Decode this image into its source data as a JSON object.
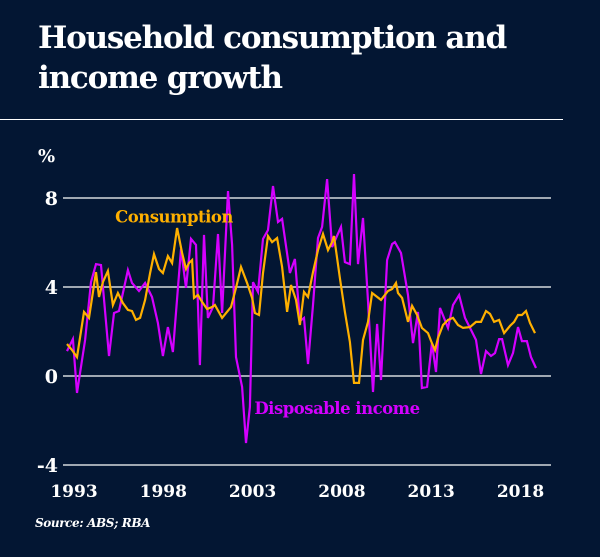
{
  "title": "Household consumption and income growth",
  "source": "Source: ABS; RBA",
  "colors": {
    "background": "#031633",
    "consumption": "#ffb000",
    "income": "#d400ff",
    "grid": "#ffffff",
    "text": "#ffffff"
  },
  "chart_data": {
    "type": "line",
    "title": "Household consumption and income growth",
    "xlabel": "",
    "ylabel": "%",
    "ylim": [
      -4,
      8
    ],
    "xlim": [
      1992.5,
      2019.4
    ],
    "yticks": [
      8,
      4,
      0,
      -4
    ],
    "ytick_labels": [
      "8",
      "4",
      "0",
      "-4"
    ],
    "xticks": [
      1993,
      1998,
      2003,
      2008,
      2013,
      2018
    ],
    "xtick_labels": [
      "1993",
      "1998",
      "2003",
      "2008",
      "2013",
      "2018"
    ],
    "grid": "horizontal",
    "legend": "inline labels",
    "series": [
      {
        "name": "Consumption",
        "label_anchor": [
          1995.3,
          6.9
        ],
        "x": [
          1992.61,
          1992.89,
          1993.17,
          1993.56,
          1993.84,
          1994.23,
          1994.4,
          1994.62,
          1994.9,
          1995.18,
          1995.46,
          1995.74,
          1996.02,
          1996.25,
          1996.47,
          1996.7,
          1996.98,
          1997.26,
          1997.48,
          1997.76,
          1997.98,
          1998.26,
          1998.49,
          1998.77,
          1999.05,
          1999.27,
          1999.44,
          1999.61,
          1999.72,
          1999.94,
          2000.17,
          2000.45,
          2000.73,
          2000.89,
          2001.29,
          2001.79,
          2002.07,
          2002.35,
          2002.69,
          2002.97,
          2003.13,
          2003.36,
          2003.58,
          2003.86,
          2004.09,
          2004.37,
          2004.65,
          2004.93,
          2005.15,
          2005.43,
          2005.65,
          2005.88,
          2006.1,
          2006.38,
          2006.66,
          2006.94,
          2007.22,
          2007.45,
          2007.56,
          2007.89,
          2008.17,
          2008.45,
          2008.68,
          2008.96,
          2009.18,
          2009.46,
          2009.69,
          2010.19,
          2010.58,
          2010.81,
          2011.03,
          2011.14,
          2011.37,
          2011.7,
          2011.93,
          2012.21,
          2012.48,
          2012.82,
          2013.04,
          2013.21,
          2013.38,
          2013.66,
          2013.94,
          2014.22,
          2014.5,
          2014.78,
          2015.17,
          2015.51,
          2015.79,
          2016.07,
          2016.29,
          2016.52,
          2016.8,
          2017.08,
          2017.41,
          2017.64,
          2017.86,
          2018.08,
          2018.31,
          2018.53,
          2018.81
        ],
        "values": [
          1.44,
          1.17,
          0.85,
          2.88,
          2.61,
          4.67,
          3.55,
          4.22,
          4.72,
          3.19,
          3.73,
          3.28,
          2.97,
          2.92,
          2.52,
          2.61,
          3.42,
          4.63,
          5.48,
          4.81,
          4.63,
          5.39,
          5.08,
          6.65,
          5.53,
          4.81,
          5.08,
          5.21,
          3.51,
          3.64,
          3.33,
          3.01,
          3.1,
          3.19,
          2.61,
          3.1,
          3.96,
          4.9,
          4.18,
          3.51,
          2.83,
          2.74,
          4.63,
          6.29,
          6.02,
          6.2,
          4.9,
          2.88,
          4.09,
          3.42,
          2.29,
          3.78,
          3.55,
          4.67,
          5.66,
          6.38,
          5.66,
          6.02,
          6.29,
          4.4,
          2.88,
          1.53,
          -0.31,
          -0.31,
          1.62,
          2.43,
          3.73,
          3.42,
          3.82,
          3.91,
          4.18,
          3.73,
          3.51,
          2.43,
          3.15,
          2.74,
          2.16,
          1.93,
          1.48,
          1.17,
          1.71,
          2.29,
          2.52,
          2.61,
          2.29,
          2.16,
          2.2,
          2.43,
          2.43,
          2.92,
          2.79,
          2.43,
          2.52,
          1.93,
          2.25,
          2.43,
          2.74,
          2.74,
          2.92,
          2.38,
          1.93
        ]
      },
      {
        "name": "Disposable income",
        "label_anchor": [
          2003.1,
          -1.7
        ],
        "x": [
          1992.61,
          1992.94,
          1993.17,
          1993.62,
          1993.95,
          1994.23,
          1994.51,
          1994.96,
          1995.24,
          1995.52,
          1996.02,
          1996.25,
          1996.64,
          1996.98,
          1997.37,
          1997.7,
          1997.98,
          1998.26,
          1998.54,
          1998.99,
          1999.27,
          1999.55,
          1999.83,
          2000.05,
          2000.28,
          2000.5,
          2000.78,
          2001.06,
          2001.29,
          2001.62,
          2001.85,
          2002.07,
          2002.41,
          2002.63,
          2002.85,
          2003.02,
          2003.3,
          2003.58,
          2003.86,
          2004.14,
          2004.42,
          2004.65,
          2005.09,
          2005.37,
          2005.65,
          2005.88,
          2006.1,
          2006.38,
          2006.66,
          2006.89,
          2007.17,
          2007.45,
          2007.95,
          2008.17,
          2008.45,
          2008.68,
          2008.9,
          2009.18,
          2009.46,
          2009.74,
          2009.97,
          2010.19,
          2010.53,
          2010.81,
          2010.97,
          2011.31,
          2011.7,
          2011.98,
          2012.26,
          2012.48,
          2012.77,
          2013.04,
          2013.27,
          2013.49,
          2013.94,
          2014.22,
          2014.56,
          2014.89,
          2015.23,
          2015.51,
          2015.79,
          2016.07,
          2016.35,
          2016.57,
          2016.8,
          2016.97,
          2017.3,
          2017.58,
          2017.86,
          2018.08,
          2018.36,
          2018.59,
          2018.87
        ],
        "values": [
          1.12,
          1.66,
          -0.76,
          1.62,
          4.22,
          5.03,
          4.99,
          0.9,
          2.83,
          2.92,
          4.76,
          4.18,
          3.82,
          4.18,
          3.55,
          2.38,
          0.9,
          2.2,
          1.08,
          5.71,
          3.96,
          6.16,
          5.89,
          0.49,
          6.34,
          2.61,
          3.1,
          6.38,
          2.83,
          8.31,
          5.89,
          0.85,
          -0.49,
          -3.01,
          -1.39,
          4.22,
          3.78,
          6.16,
          6.56,
          8.54,
          6.92,
          7.06,
          4.63,
          5.26,
          2.47,
          2.61,
          0.54,
          3.19,
          6.2,
          6.7,
          8.85,
          5.8,
          6.7,
          5.12,
          5.03,
          9.08,
          5.03,
          7.1,
          3.37,
          -0.72,
          2.34,
          -0.18,
          5.21,
          5.93,
          6.02,
          5.53,
          3.64,
          1.48,
          2.88,
          -0.54,
          -0.49,
          1.48,
          0.18,
          3.06,
          2.16,
          3.19,
          3.64,
          2.61,
          2.07,
          1.62,
          0.09,
          1.12,
          0.9,
          1.03,
          1.66,
          1.66,
          0.49,
          1.03,
          2.2,
          1.57,
          1.57,
          0.85,
          0.36
        ]
      }
    ]
  }
}
